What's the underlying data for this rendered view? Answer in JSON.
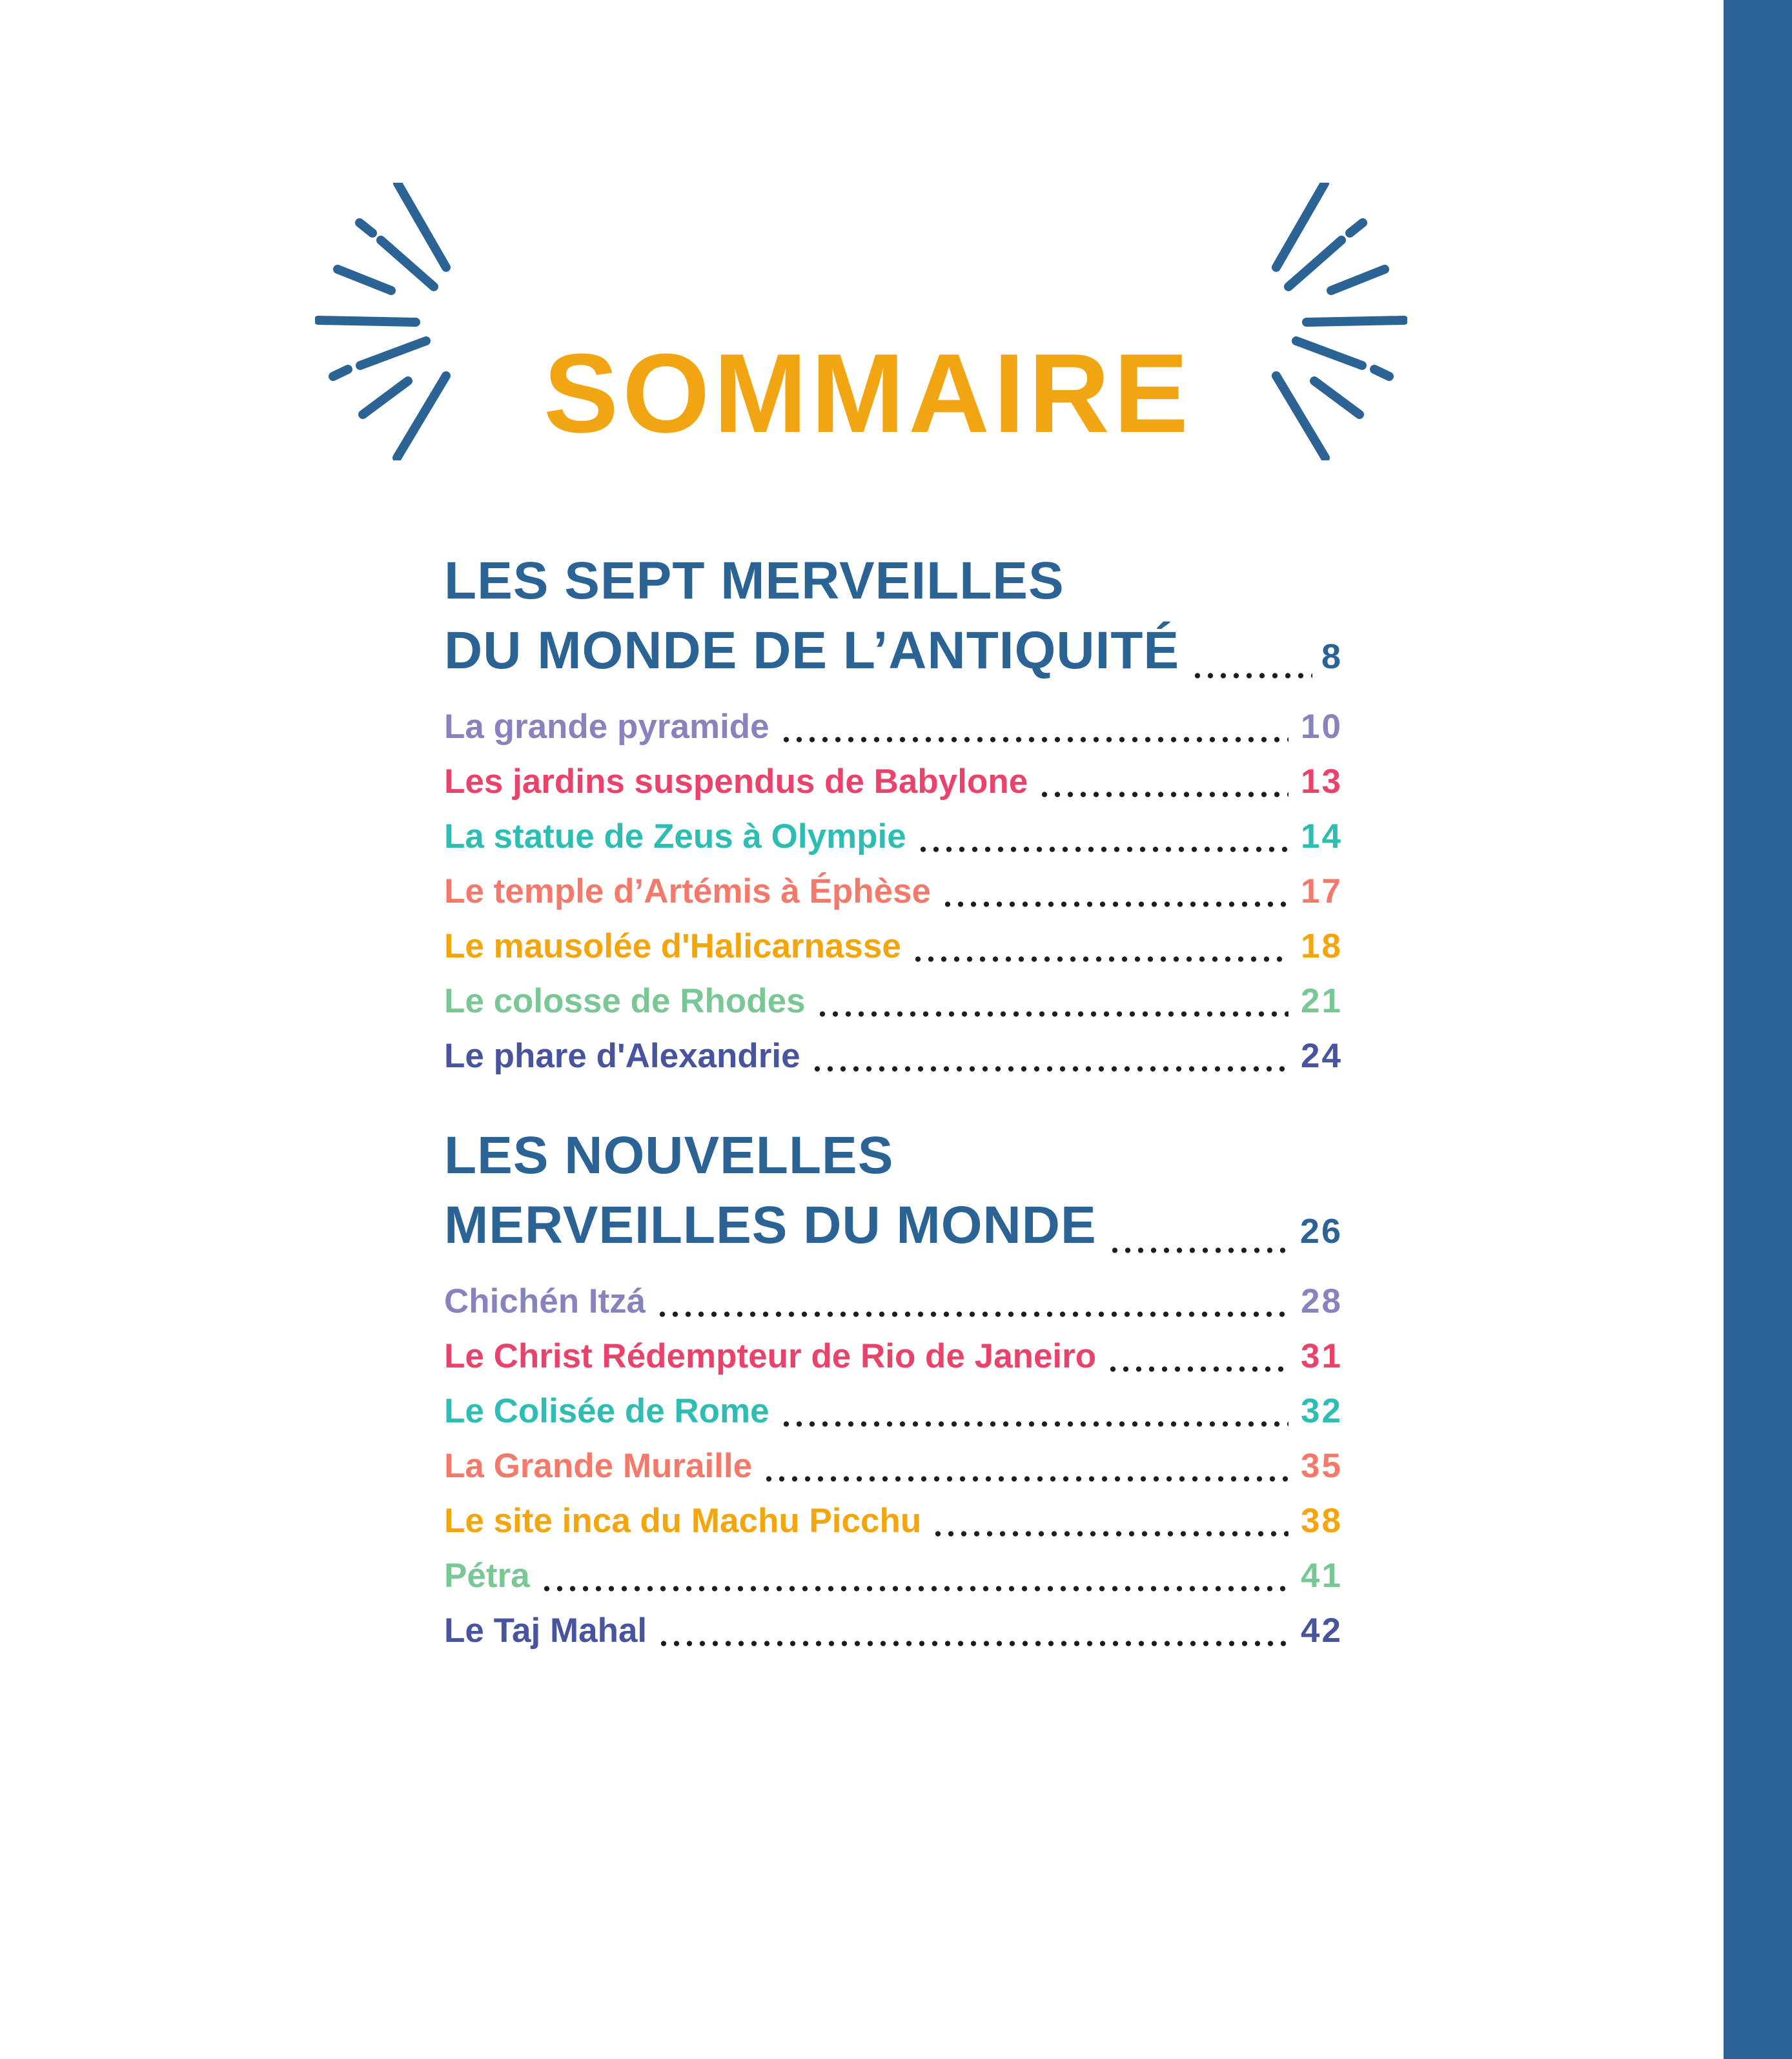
{
  "page": {
    "title": "SOMMAIRE",
    "title_color": "#F1A512",
    "heading_color": "#2A6394",
    "sidebar_color": "#2B6295",
    "ray_color": "#2A6394",
    "leader_dot_color": "#1D1D1B",
    "background": "#FFFFFF"
  },
  "sections": [
    {
      "heading_line1": "LES SEPT MERVEILLES",
      "heading_line2": "DU MONDE DE L’ANTIQUITÉ",
      "page": "8",
      "entries": [
        {
          "label": "La grande pyramide",
          "page": "10",
          "color": "#8784BD"
        },
        {
          "label": "Les jardins suspendus de Babylone",
          "page": "13",
          "color": "#E9436B"
        },
        {
          "label": "La statue de Zeus à Olympie",
          "page": "14",
          "color": "#2EBDB2"
        },
        {
          "label": "Le temple d’Artémis à Éphèse",
          "page": "17",
          "color": "#F5796A"
        },
        {
          "label": "Le mausolée d'Halicarnasse",
          "page": "18",
          "color": "#F2A50C"
        },
        {
          "label": "Le colosse de Rhodes",
          "page": "21",
          "color": "#79C795"
        },
        {
          "label": "Le phare d'Alexandrie",
          "page": "24",
          "color": "#48549D"
        }
      ]
    },
    {
      "heading_line1": "LES NOUVELLES",
      "heading_line2": "MERVEILLES DU MONDE",
      "page": "26",
      "entries": [
        {
          "label": "Chichén Itzá",
          "page": "28",
          "color": "#8784BD"
        },
        {
          "label": "Le Christ Rédempteur de Rio de Janeiro",
          "page": "31",
          "color": "#E9436B"
        },
        {
          "label": "Le Colisée de Rome",
          "page": "32",
          "color": "#2EBDB2"
        },
        {
          "label": "La Grande Muraille",
          "page": "35",
          "color": "#F5796A"
        },
        {
          "label": "Le site inca du Machu Picchu",
          "page": "38",
          "color": "#F2A50C"
        },
        {
          "label": "Pétra",
          "page": "41",
          "color": "#79C795"
        },
        {
          "label": "Le Taj Mahal",
          "page": "42",
          "color": "#48549D"
        }
      ]
    }
  ]
}
